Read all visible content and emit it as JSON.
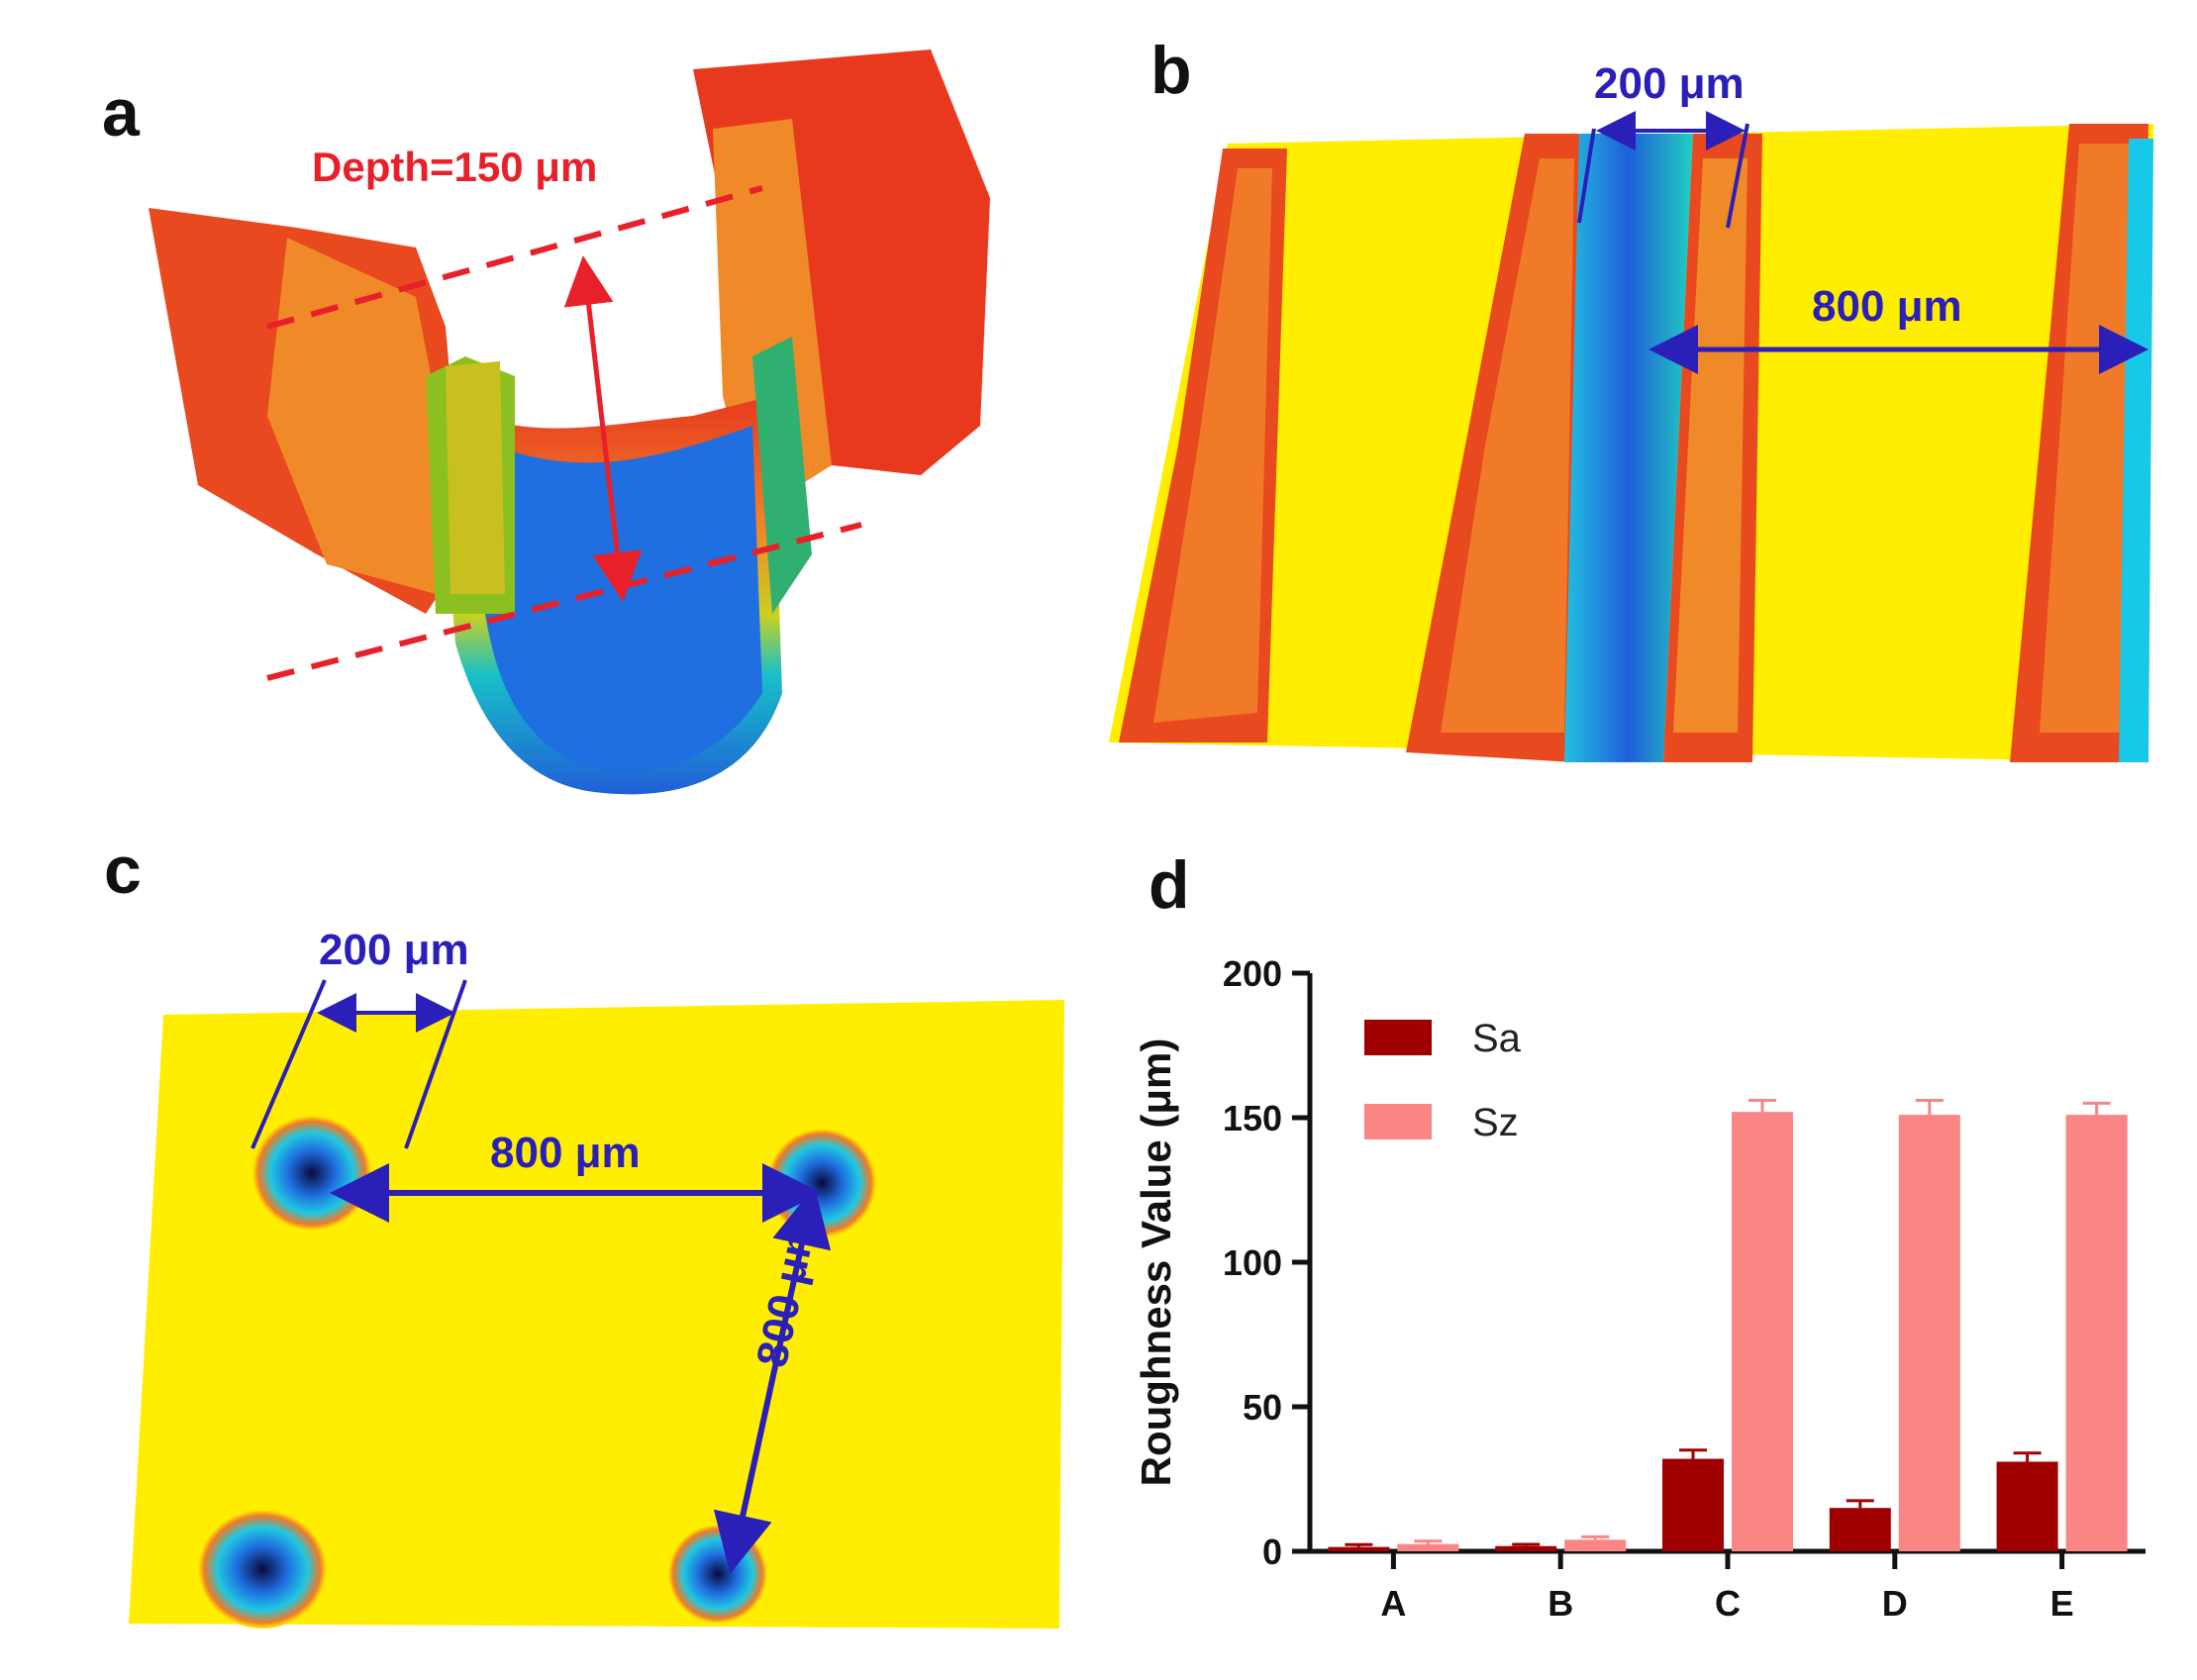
{
  "panels": {
    "a": {
      "letter": "a",
      "depth_label": "Depth=150 μm"
    },
    "b": {
      "letter": "b",
      "width_label": "200 μm",
      "spacing_label": "800 μm"
    },
    "c": {
      "letter": "c",
      "width_label": "200 μm",
      "spacing_h_label": "800 μm",
      "spacing_v_label": "800 μm"
    },
    "d": {
      "letter": "d"
    }
  },
  "colors": {
    "surface_yellow": "#ffee00",
    "peak_red": "#e8391f",
    "peak_orange": "#f07a28",
    "valley_blue": "#1f6fe0",
    "valley_cyan": "#18c8e8",
    "dimension_blue": "#2a1fb8",
    "dimension_red": "#e8202a",
    "sa_color": "#a00000",
    "sz_color": "#f98585"
  },
  "chart_data": {
    "type": "bar",
    "title": "",
    "xlabel": "",
    "ylabel": "Roughness Value (μm)",
    "categories": [
      "A",
      "B",
      "C",
      "D",
      "E"
    ],
    "ylim": [
      0,
      200
    ],
    "yticks": [
      "0",
      "50",
      "100",
      "150",
      "200"
    ],
    "legend_position": "top-left",
    "grid": false,
    "series": [
      {
        "name": "Sa",
        "color": "#a00000",
        "values": [
          1.5,
          1.8,
          32,
          15,
          31
        ],
        "errors": [
          0.8,
          0.6,
          3,
          2.5,
          3
        ]
      },
      {
        "name": "Sz",
        "color": "#f98585",
        "values": [
          2.5,
          4,
          152,
          151,
          151
        ],
        "errors": [
          1,
          1,
          4,
          5,
          4
        ]
      }
    ]
  }
}
